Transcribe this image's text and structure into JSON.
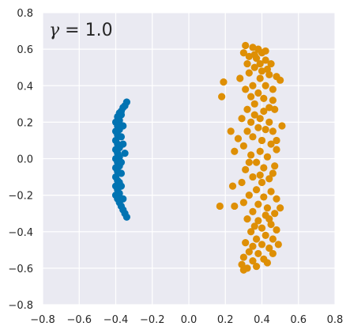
{
  "chart_data": {
    "type": "scatter",
    "annotation": {
      "symbol": "γ",
      "equals": " = ",
      "value": "1.0"
    },
    "xlim": [
      -0.8,
      0.8
    ],
    "ylim": [
      -0.8,
      0.8
    ],
    "xticks": [
      "−0.8",
      "−0.6",
      "−0.4",
      "−0.2",
      "0.0",
      "0.2",
      "0.4",
      "0.6",
      "0.8"
    ],
    "yticks": [
      "0.8",
      "0.6",
      "0.4",
      "0.2",
      "0.0",
      "−0.2",
      "−0.4",
      "−0.6",
      "−0.8"
    ],
    "grid": true,
    "background": "#eaeaf2",
    "series": [
      {
        "color": "#0173b2",
        "points": [
          [
            -0.34,
            0.31
          ],
          [
            -0.35,
            0.29
          ],
          [
            -0.36,
            0.28
          ],
          [
            -0.37,
            0.26
          ],
          [
            -0.37,
            0.24
          ],
          [
            -0.38,
            0.25
          ],
          [
            -0.39,
            0.23
          ],
          [
            -0.38,
            0.21
          ],
          [
            -0.4,
            0.2
          ],
          [
            -0.39,
            0.18
          ],
          [
            -0.38,
            0.16
          ],
          [
            -0.4,
            0.15
          ],
          [
            -0.39,
            0.13
          ],
          [
            -0.37,
            0.12
          ],
          [
            -0.4,
            0.1
          ],
          [
            -0.39,
            0.08
          ],
          [
            -0.38,
            0.06
          ],
          [
            -0.4,
            0.05
          ],
          [
            -0.39,
            0.03
          ],
          [
            -0.35,
            0.03
          ],
          [
            -0.38,
            0.01
          ],
          [
            -0.4,
            0.0
          ],
          [
            -0.39,
            -0.02
          ],
          [
            -0.38,
            -0.04
          ],
          [
            -0.4,
            -0.05
          ],
          [
            -0.39,
            -0.07
          ],
          [
            -0.37,
            -0.08
          ],
          [
            -0.4,
            -0.1
          ],
          [
            -0.39,
            -0.12
          ],
          [
            -0.38,
            -0.13
          ],
          [
            -0.4,
            -0.15
          ],
          [
            -0.39,
            -0.17
          ],
          [
            -0.38,
            -0.19
          ],
          [
            -0.4,
            -0.2
          ],
          [
            -0.39,
            -0.22
          ],
          [
            -0.38,
            -0.24
          ],
          [
            -0.37,
            -0.26
          ],
          [
            -0.36,
            -0.28
          ],
          [
            -0.35,
            -0.3
          ],
          [
            -0.34,
            -0.32
          ],
          [
            -0.36,
            -0.22
          ],
          [
            -0.36,
            0.18
          ],
          [
            -0.37,
            -0.15
          ],
          [
            -0.36,
            0.08
          ],
          [
            -0.37,
            -0.02
          ]
        ]
      },
      {
        "color": "#de8f05",
        "points": [
          [
            0.31,
            0.62
          ],
          [
            0.35,
            0.61
          ],
          [
            0.38,
            0.6
          ],
          [
            0.4,
            0.58
          ],
          [
            0.33,
            0.56
          ],
          [
            0.37,
            0.55
          ],
          [
            0.42,
            0.54
          ],
          [
            0.45,
            0.52
          ],
          [
            0.3,
            0.58
          ],
          [
            0.36,
            0.5
          ],
          [
            0.4,
            0.48
          ],
          [
            0.44,
            0.46
          ],
          [
            0.48,
            0.45
          ],
          [
            0.5,
            0.43
          ],
          [
            0.33,
            0.47
          ],
          [
            0.39,
            0.44
          ],
          [
            0.42,
            0.4
          ],
          [
            0.46,
            0.38
          ],
          [
            0.35,
            0.4
          ],
          [
            0.38,
            0.36
          ],
          [
            0.31,
            0.38
          ],
          [
            0.28,
            0.44
          ],
          [
            0.19,
            0.42
          ],
          [
            0.18,
            0.34
          ],
          [
            0.41,
            0.33
          ],
          [
            0.46,
            0.32
          ],
          [
            0.36,
            0.3
          ],
          [
            0.32,
            0.27
          ],
          [
            0.41,
            0.26
          ],
          [
            0.47,
            0.27
          ],
          [
            0.29,
            0.22
          ],
          [
            0.34,
            0.2
          ],
          [
            0.39,
            0.22
          ],
          [
            0.44,
            0.2
          ],
          [
            0.38,
            0.17
          ],
          [
            0.42,
            0.16
          ],
          [
            0.46,
            0.15
          ],
          [
            0.51,
            0.18
          ],
          [
            0.32,
            0.15
          ],
          [
            0.23,
            0.15
          ],
          [
            0.27,
            0.11
          ],
          [
            0.35,
            0.12
          ],
          [
            0.4,
            0.1
          ],
          [
            0.45,
            0.08
          ],
          [
            0.3,
            0.07
          ],
          [
            0.48,
            0.05
          ],
          [
            0.39,
            0.04
          ],
          [
            0.34,
            0.02
          ],
          [
            0.25,
            0.04
          ],
          [
            0.43,
            0.01
          ],
          [
            0.37,
            -0.02
          ],
          [
            0.41,
            -0.05
          ],
          [
            0.47,
            -0.04
          ],
          [
            0.31,
            -0.06
          ],
          [
            0.35,
            -0.1
          ],
          [
            0.44,
            -0.11
          ],
          [
            0.4,
            -0.13
          ],
          [
            0.29,
            -0.13
          ],
          [
            0.24,
            -0.15
          ],
          [
            0.37,
            -0.17
          ],
          [
            0.45,
            -0.18
          ],
          [
            0.33,
            -0.2
          ],
          [
            0.41,
            -0.21
          ],
          [
            0.48,
            -0.22
          ],
          [
            0.3,
            -0.24
          ],
          [
            0.38,
            -0.25
          ],
          [
            0.43,
            -0.27
          ],
          [
            0.5,
            -0.27
          ],
          [
            0.17,
            -0.26
          ],
          [
            0.25,
            -0.26
          ],
          [
            0.35,
            -0.29
          ],
          [
            0.42,
            -0.31
          ],
          [
            0.47,
            -0.3
          ],
          [
            0.32,
            -0.33
          ],
          [
            0.38,
            -0.34
          ],
          [
            0.45,
            -0.36
          ],
          [
            0.4,
            -0.38
          ],
          [
            0.48,
            -0.39
          ],
          [
            0.34,
            -0.4
          ],
          [
            0.42,
            -0.42
          ],
          [
            0.37,
            -0.44
          ],
          [
            0.46,
            -0.44
          ],
          [
            0.31,
            -0.46
          ],
          [
            0.4,
            -0.47
          ],
          [
            0.44,
            -0.49
          ],
          [
            0.33,
            -0.51
          ],
          [
            0.38,
            -0.52
          ],
          [
            0.46,
            -0.52
          ],
          [
            0.3,
            -0.54
          ],
          [
            0.35,
            -0.56
          ],
          [
            0.41,
            -0.55
          ],
          [
            0.29,
            -0.58
          ],
          [
            0.32,
            -0.6
          ],
          [
            0.37,
            -0.59
          ],
          [
            0.3,
            -0.61
          ],
          [
            0.43,
            -0.57
          ],
          [
            0.36,
            0.57
          ],
          [
            0.43,
            0.49
          ],
          [
            0.39,
            0.52
          ],
          [
            0.34,
            0.34
          ],
          [
            0.44,
            0.28
          ],
          [
            0.36,
            0.24
          ],
          [
            0.48,
            0.1
          ],
          [
            0.33,
            -0.02
          ],
          [
            0.46,
            -0.08
          ],
          [
            0.39,
            -0.09
          ],
          [
            0.36,
            -0.37
          ],
          [
            0.44,
            -0.33
          ],
          [
            0.49,
            -0.47
          ],
          [
            0.35,
            -0.48
          ],
          [
            0.42,
            0.59
          ],
          [
            0.32,
            0.52
          ]
        ]
      }
    ]
  }
}
